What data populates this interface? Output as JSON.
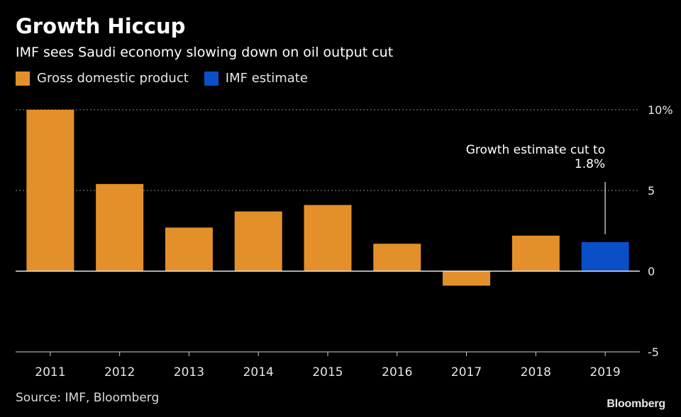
{
  "header": {
    "title": "Growth Hiccup",
    "subtitle": "IMF sees Saudi economy slowing down on oil output cut"
  },
  "legend": [
    {
      "label": "Gross domestic product",
      "color": "#E3902A"
    },
    {
      "label": "IMF estimate",
      "color": "#0A4FC8"
    }
  ],
  "footer": {
    "source": "Source: IMF, Bloomberg",
    "brand": "Bloomberg"
  },
  "chart_data": {
    "type": "bar",
    "title": "Growth Hiccup",
    "subtitle": "IMF sees Saudi economy slowing down on oil output cut",
    "xlabel": "",
    "ylabel": "",
    "categories": [
      "2011",
      "2012",
      "2013",
      "2014",
      "2015",
      "2016",
      "2017",
      "2018",
      "2019"
    ],
    "series": [
      {
        "name": "Gross domestic product",
        "color": "#E3902A",
        "values": [
          10.0,
          5.4,
          2.7,
          3.7,
          4.1,
          1.7,
          -0.9,
          2.2,
          null
        ]
      },
      {
        "name": "IMF estimate",
        "color": "#0A4FC8",
        "values": [
          null,
          null,
          null,
          null,
          null,
          null,
          null,
          null,
          1.8
        ]
      }
    ],
    "ylim": [
      -5,
      10
    ],
    "yticks": [
      10,
      5,
      0,
      -5
    ],
    "ytick_labels": [
      "10%",
      "5",
      "0",
      "-5"
    ],
    "grid": true,
    "annotation": {
      "category": "2019",
      "lines": [
        "Growth estimate cut to",
        "1.8%"
      ]
    }
  }
}
